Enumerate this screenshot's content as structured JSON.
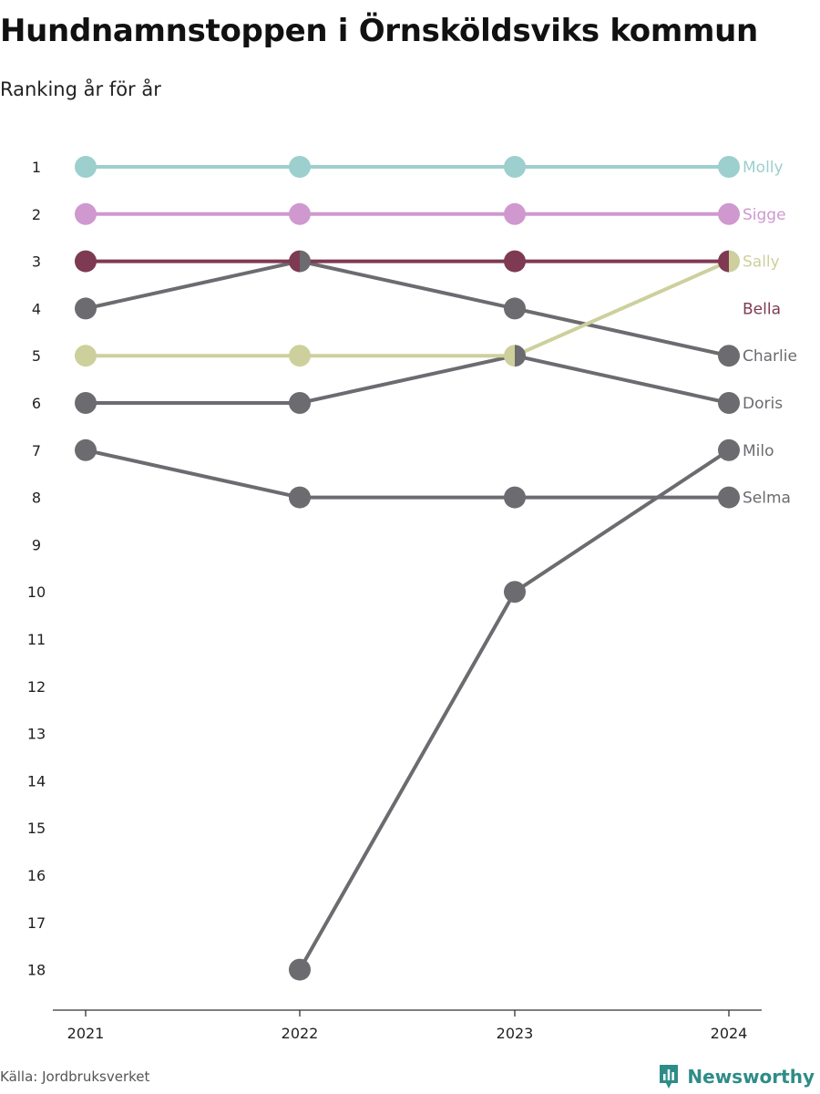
{
  "header": {
    "title": "Hundnamnstoppen i Örnsköldsviks kommun",
    "subtitle": "Ranking år för år"
  },
  "footer": {
    "source": "Källa: Jordbruksverket",
    "brand": "Newsworthy",
    "brand_color": "#2e8c88"
  },
  "chart_data": {
    "type": "line",
    "x": [
      "2021",
      "2022",
      "2023",
      "2024"
    ],
    "ylim": [
      1,
      18
    ],
    "y_reversed": true,
    "y_ticks": [
      "1",
      "2",
      "3",
      "4",
      "5",
      "6",
      "7",
      "8",
      "9",
      "10",
      "11",
      "12",
      "13",
      "14",
      "15",
      "16",
      "17",
      "18"
    ],
    "grid": false,
    "series": [
      {
        "name": "Selma",
        "values": [
          7,
          8,
          8,
          8
        ],
        "color": "#6b6b70"
      },
      {
        "name": "Milo",
        "values": [
          null,
          18,
          10,
          7
        ],
        "color": "#6b6b70"
      },
      {
        "name": "Doris",
        "values": [
          6,
          6,
          5,
          6
        ],
        "color": "#6b6b70"
      },
      {
        "name": "Charlie",
        "values": [
          4,
          3,
          4,
          5
        ],
        "color": "#6b6b70"
      },
      {
        "name": "Sally",
        "values": [
          5,
          5,
          5,
          3
        ],
        "color": "#cdd09c"
      },
      {
        "name": "Bella",
        "values": [
          3,
          3,
          3,
          3
        ],
        "color": "#7e3a52"
      },
      {
        "name": "Sigge",
        "values": [
          2,
          2,
          2,
          2
        ],
        "color": "#cf98cf"
      },
      {
        "name": "Molly",
        "values": [
          1,
          1,
          1,
          1
        ],
        "color": "#9ccfcd"
      }
    ],
    "end_labels": [
      "Molly",
      "Sigge",
      "Sally",
      "Bella",
      "Charlie",
      "Doris",
      "Milo",
      "Selma"
    ]
  }
}
